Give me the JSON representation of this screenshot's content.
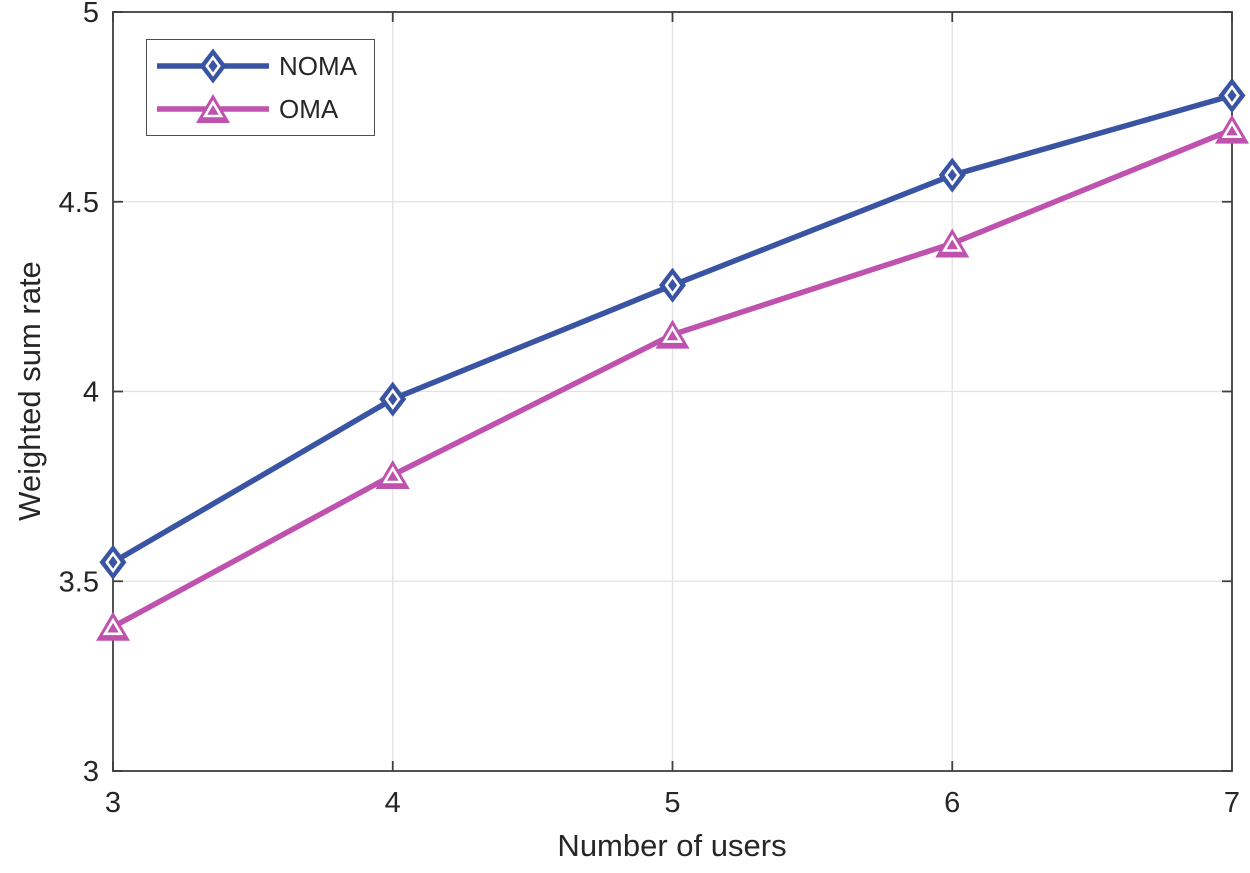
{
  "chart_data": {
    "type": "line",
    "title": "",
    "xlabel": "Number of users",
    "ylabel": "Weighted sum rate",
    "x": [
      3,
      4,
      5,
      6,
      7
    ],
    "xlim": [
      3,
      7
    ],
    "ylim": [
      3,
      5
    ],
    "xticks": [
      3,
      4,
      5,
      6,
      7
    ],
    "yticks": [
      3,
      3.5,
      4,
      4.5,
      5
    ],
    "grid": true,
    "legend_position": "top-left",
    "series": [
      {
        "name": "NOMA",
        "marker": "diamond",
        "color": "#3A54A4",
        "values": [
          3.55,
          3.98,
          4.28,
          4.57,
          4.78
        ]
      },
      {
        "name": "OMA",
        "marker": "triangle",
        "color": "#BF51AF",
        "values": [
          3.38,
          3.78,
          4.15,
          4.39,
          4.69
        ]
      }
    ]
  },
  "style_colors": {
    "axis": "#3F3F3F",
    "grid": "#E2E2E2",
    "tick_text": "#262626",
    "marker_inner": "#FFFFFF"
  }
}
